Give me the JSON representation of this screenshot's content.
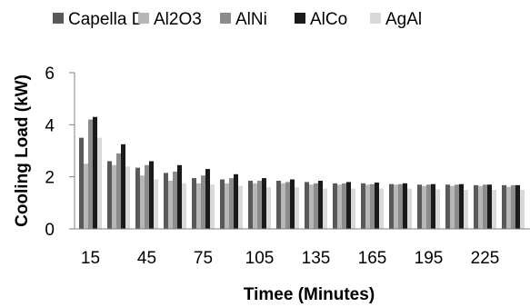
{
  "chart_data": {
    "type": "bar",
    "title": "",
    "xlabel": "Timee (Minutes)",
    "ylabel": "Cooling Load (kW)",
    "ylim": [
      0,
      6
    ],
    "yticks": [
      "0",
      "2",
      "4",
      "6"
    ],
    "grid": false,
    "legend_position": "top",
    "categories": [
      "15",
      "30",
      "45",
      "60",
      "75",
      "90",
      "105",
      "120",
      "135",
      "150",
      "165",
      "180",
      "195",
      "210",
      "225",
      "240"
    ],
    "xtick_labels": [
      "15",
      "45",
      "75",
      "105",
      "135",
      "165",
      "195",
      "225"
    ],
    "series": [
      {
        "name": "Capella D",
        "color": "#595959",
        "values": [
          3.5,
          2.6,
          2.35,
          2.15,
          1.95,
          1.9,
          1.85,
          1.85,
          1.8,
          1.75,
          1.75,
          1.72,
          1.7,
          1.7,
          1.68,
          1.68
        ]
      },
      {
        "name": "Al2O3",
        "color": "#b7b7b7",
        "values": [
          2.5,
          2.45,
          2.05,
          1.85,
          1.75,
          1.75,
          1.75,
          1.75,
          1.7,
          1.7,
          1.7,
          1.7,
          1.65,
          1.65,
          1.65,
          1.62
        ]
      },
      {
        "name": "AlNi",
        "color": "#8c8c8c",
        "values": [
          4.2,
          2.9,
          2.45,
          2.2,
          2.05,
          1.95,
          1.85,
          1.8,
          1.75,
          1.75,
          1.72,
          1.72,
          1.7,
          1.7,
          1.7,
          1.68
        ]
      },
      {
        "name": "AlCo",
        "color": "#1a1a1a",
        "values": [
          4.3,
          3.25,
          2.6,
          2.45,
          2.3,
          2.1,
          1.95,
          1.9,
          1.85,
          1.8,
          1.78,
          1.75,
          1.72,
          1.72,
          1.7,
          1.68
        ]
      },
      {
        "name": "AgAl",
        "color": "#d9d9d9",
        "values": [
          3.5,
          2.4,
          1.9,
          1.75,
          1.7,
          1.65,
          1.6,
          1.6,
          1.55,
          1.55,
          1.55,
          1.55,
          1.52,
          1.5,
          1.5,
          1.5
        ]
      }
    ]
  }
}
